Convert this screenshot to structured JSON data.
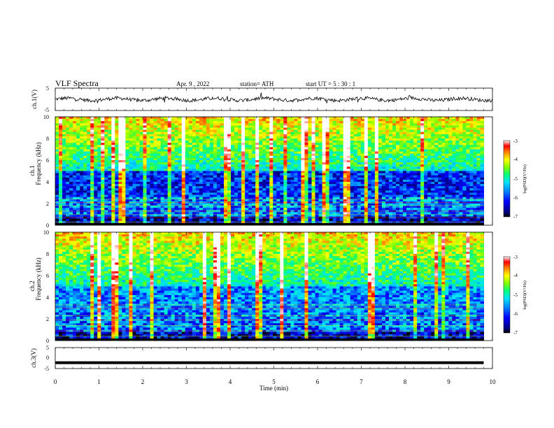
{
  "header": {
    "title": "VLF  Spectra",
    "date": "Apr. 9  , 2022",
    "station": "station= ATH",
    "start": "start  UT  =   5  : 30 : 1"
  },
  "chart_data": [
    {
      "type": "line",
      "name": "ch1-waveform",
      "ylabel": "ch.1(V)",
      "ylim": [
        -5,
        5
      ],
      "yticks": [
        "5",
        "-5"
      ],
      "xlim": [
        0,
        10
      ],
      "note_shape": "noisy waveform oscillating around ~0 V with spikes"
    },
    {
      "type": "heatmap",
      "name": "ch1-spectrogram",
      "ylabel_line1": "ch.1",
      "ylabel_line2": "Frequency  (kHz)",
      "ylim": [
        0,
        10
      ],
      "yticks": [
        "0",
        "2",
        "4",
        "6",
        "8",
        "10"
      ],
      "xlim": [
        0,
        10
      ],
      "colorbar": {
        "label": "log(PSD)(V²/Hz)",
        "range": [
          -7,
          -3
        ],
        "ticks": [
          "-3",
          "-4",
          "-5",
          "-6",
          "-7"
        ],
        "colormap": [
          "#000000",
          "#00007f",
          "#0000ff",
          "#0080ff",
          "#00e0ff",
          "#00ff80",
          "#80ff00",
          "#ffff00",
          "#ff8000",
          "#ff0000",
          "#ffffff"
        ]
      }
    },
    {
      "type": "heatmap",
      "name": "ch2-spectrogram",
      "ylabel_line1": "ch.2",
      "ylabel_line2": "Frequency  (kHz)",
      "ylim": [
        0,
        10
      ],
      "yticks": [
        "0",
        "2",
        "4",
        "6",
        "8",
        "10"
      ],
      "xlim": [
        0,
        10
      ],
      "colorbar": {
        "label": "log(PSD)(V²/Hz)",
        "range": [
          -7,
          -3
        ],
        "ticks": [
          "-3",
          "-4",
          "-5",
          "-6",
          "-7"
        ]
      }
    },
    {
      "type": "line",
      "name": "ch3-waveform",
      "ylabel": "ch.3(V)",
      "ylim": [
        -5,
        5
      ],
      "yticks": [
        "5",
        "0",
        "-5"
      ],
      "xlim": [
        0,
        10
      ],
      "series": [
        {
          "x": [
            0,
            9.8
          ],
          "y": [
            -2.2,
            -2.2
          ]
        }
      ]
    }
  ],
  "xaxis": {
    "label": "Time  (min)",
    "ticks": [
      "0",
      "1",
      "2",
      "3",
      "4",
      "5",
      "6",
      "7",
      "8",
      "9",
      "10"
    ],
    "data_end": 9.8
  }
}
